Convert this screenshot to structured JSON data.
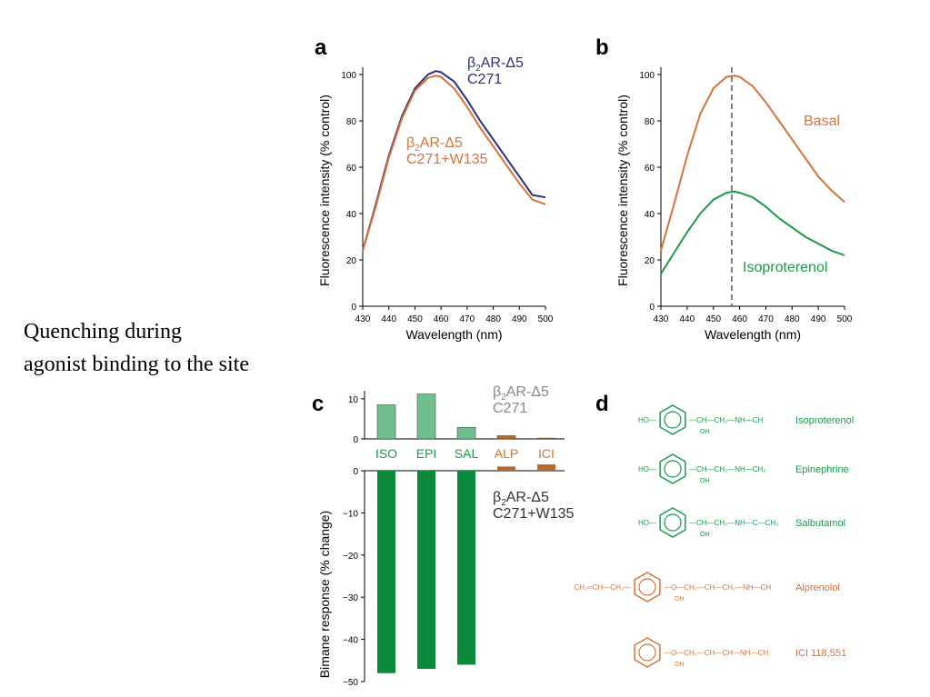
{
  "side_text": {
    "line1": "Quenching during",
    "line2": "agonist binding to the site"
  },
  "colors": {
    "blue": "#2b2f7a",
    "orange": "#d4733a",
    "green": "#1a9a4a",
    "green_bar": "#6fbf8f",
    "dark_green": "#0a8a3a",
    "grey": "#888888",
    "brown_bar": "#b86a2a"
  },
  "chart_data": [
    {
      "panel": "a",
      "type": "line",
      "xlabel": "Wavelength (nm)",
      "ylabel": "Fluorescence intensity (% control)",
      "xlim": [
        430,
        500
      ],
      "ylim": [
        0,
        100
      ],
      "xticks": [
        "430",
        "440",
        "450",
        "460",
        "470",
        "480",
        "490",
        "500"
      ],
      "yticks": [
        "0",
        "20",
        "40",
        "60",
        "80",
        "100"
      ],
      "series": [
        {
          "name_parts": [
            "β",
            "2",
            "AR-Δ5",
            "C271"
          ],
          "color": "#2b2f7a",
          "x": [
            430,
            435,
            440,
            445,
            450,
            455,
            458,
            460,
            465,
            470,
            475,
            480,
            485,
            490,
            495,
            500
          ],
          "y": [
            24,
            44,
            65,
            82,
            94,
            100,
            101.5,
            101,
            97,
            89,
            80,
            72,
            64,
            56,
            48,
            47
          ]
        },
        {
          "name_parts": [
            "β",
            "2",
            "AR-Δ5",
            "C271+W135"
          ],
          "color": "#d4733a",
          "x": [
            430,
            435,
            440,
            445,
            450,
            455,
            458,
            460,
            465,
            470,
            475,
            480,
            485,
            490,
            495,
            500
          ],
          "y": [
            24,
            43,
            64,
            81,
            93,
            98.5,
            99.5,
            99,
            94,
            86,
            77,
            69,
            61,
            53,
            46,
            44
          ]
        }
      ]
    },
    {
      "panel": "b",
      "type": "line",
      "xlabel": "Wavelength (nm)",
      "ylabel": "Fluorescence intensity (% control)",
      "xlim": [
        430,
        500
      ],
      "ylim": [
        0,
        100
      ],
      "xticks": [
        "430",
        "440",
        "450",
        "460",
        "470",
        "480",
        "490",
        "500"
      ],
      "yticks": [
        "0",
        "20",
        "40",
        "60",
        "80",
        "100"
      ],
      "vline": 457,
      "series": [
        {
          "name": "Basal",
          "color": "#d4733a",
          "x": [
            430,
            435,
            440,
            445,
            450,
            455,
            458,
            460,
            465,
            470,
            475,
            480,
            485,
            490,
            495,
            500
          ],
          "y": [
            24,
            44,
            65,
            83,
            94,
            99,
            99.5,
            99,
            95,
            88,
            80,
            72,
            64,
            56,
            50,
            45
          ]
        },
        {
          "name": "Isoproterenol",
          "color": "#1a9a4a",
          "x": [
            430,
            435,
            440,
            445,
            450,
            455,
            458,
            460,
            465,
            470,
            475,
            480,
            485,
            490,
            495,
            500
          ],
          "y": [
            14,
            23,
            32,
            40,
            46,
            49,
            49.5,
            49,
            47,
            43,
            38,
            34,
            30,
            27,
            24,
            22
          ]
        }
      ]
    },
    {
      "panel": "c",
      "type": "bar",
      "ylabel": "Bimane response (% change)",
      "categories": [
        "ISO",
        "EPI",
        "SAL",
        "ALP",
        "ICI"
      ],
      "category_colors": [
        "#1a9a4a",
        "#1a9a4a",
        "#1a9a4a",
        "#d4733a",
        "#d4733a"
      ],
      "top_label_parts": [
        "β",
        "2",
        "AR-Δ5",
        "C271"
      ],
      "bottom_label_parts": [
        "β",
        "2",
        "AR-Δ5",
        "C271+W135"
      ],
      "top": {
        "ylim": [
          0,
          12
        ],
        "yticks": [
          "0",
          "10"
        ],
        "values": [
          8.5,
          11.2,
          2.9,
          0.8,
          0.2
        ],
        "colors": [
          "#6fbf8f",
          "#6fbf8f",
          "#6fbf8f",
          "#b86a2a",
          "#b86a2a"
        ]
      },
      "bottom": {
        "ylim": [
          -50,
          0
        ],
        "yticks": [
          "0",
          "−10",
          "−20",
          "−30",
          "−40",
          "−50"
        ],
        "values": [
          -48,
          -47,
          -46,
          1.0,
          1.5
        ],
        "colors": [
          "#0a8a3a",
          "#0a8a3a",
          "#0a8a3a",
          "#b86a2a",
          "#b86a2a"
        ]
      }
    }
  ],
  "panel_labels": {
    "a": "a",
    "b": "b",
    "c": "c",
    "d": "d"
  },
  "compounds": [
    {
      "name": "Isoproterenol",
      "color": "#1a9a4a"
    },
    {
      "name": "Epinephrine",
      "color": "#1a9a4a"
    },
    {
      "name": "Salbutamol",
      "color": "#1a9a4a"
    },
    {
      "name": "Alprenolol",
      "color": "#d4733a"
    },
    {
      "name": "ICI 118,551",
      "color": "#d4733a"
    }
  ]
}
